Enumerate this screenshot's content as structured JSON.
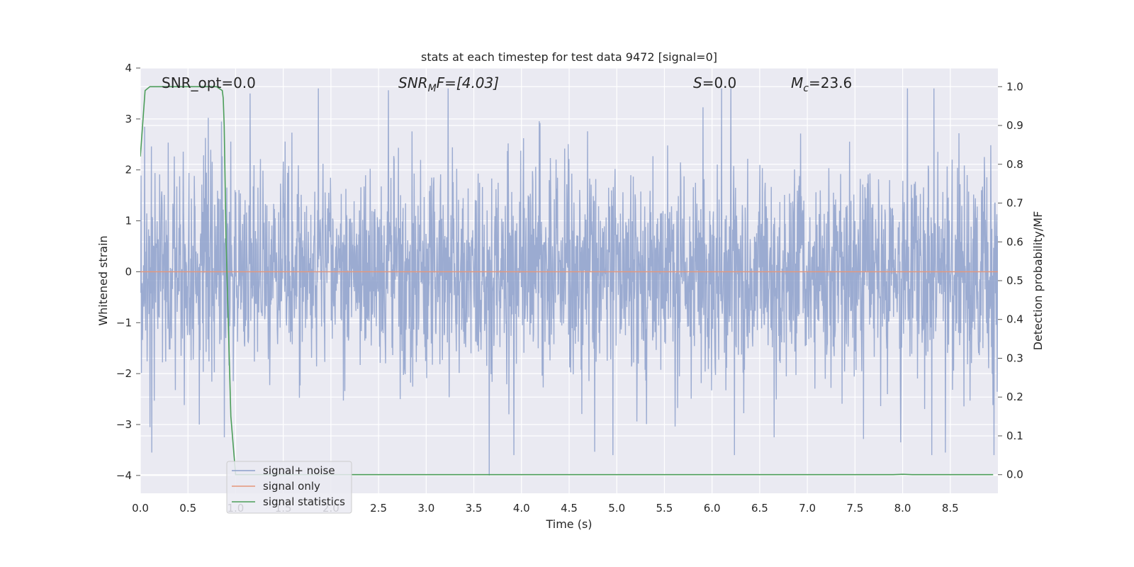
{
  "chart_data": {
    "type": "line",
    "title": "stats at each timestep for test data 9472 [signal=0]",
    "xlabel": "Time (s)",
    "ylabel": "Whitened strain",
    "y2label": "Detection probability/MF",
    "xlim": [
      0.0,
      9.0
    ],
    "ylim": [
      -4.35,
      4.0
    ],
    "y2lim": [
      -0.048,
      1.048
    ],
    "x_ticks": [
      0.0,
      0.5,
      1.0,
      1.5,
      2.0,
      2.5,
      3.0,
      3.5,
      4.0,
      4.5,
      5.0,
      5.5,
      6.0,
      6.5,
      7.0,
      7.5,
      8.0,
      8.5
    ],
    "x_tick_labels": [
      "0.0",
      "0.5",
      "1.0",
      "1.5",
      "2.0",
      "2.5",
      "3.0",
      "3.5",
      "4.0",
      "4.5",
      "5.0",
      "5.5",
      "6.0",
      "6.5",
      "7.0",
      "7.5",
      "8.0",
      "8.5"
    ],
    "y_ticks": [
      4,
      3,
      2,
      1,
      0,
      -1,
      -2,
      -3,
      -4
    ],
    "y_tick_labels": [
      "4",
      "3",
      "2",
      "1",
      "0",
      "−1",
      "−2",
      "−3",
      "−4"
    ],
    "y2_ticks": [
      1.0,
      0.9,
      0.8,
      0.7,
      0.6,
      0.5,
      0.4,
      0.3,
      0.2,
      0.1,
      0.0
    ],
    "y2_tick_labels": [
      "1.0",
      "0.9",
      "0.8",
      "0.7",
      "0.6",
      "0.5",
      "0.4",
      "0.3",
      "0.2",
      "0.1",
      "0.0"
    ],
    "grid": true,
    "legend_position": "lower-left",
    "annotations": {
      "snr_opt": "SNR_opt=0.0",
      "snr_mf_base": "SNR",
      "snr_mf_sub": "M",
      "snr_mf_rest": "F=[4.03]",
      "s_italic": "S",
      "s_rest": "=0.0",
      "mc_base": "M",
      "mc_sub": "c",
      "mc_rest": "=23.6"
    },
    "series": [
      {
        "name": "signal+ noise",
        "color": "#8da0cb",
        "kind": "noise",
        "x_range": [
          0.0,
          9.0
        ],
        "envelope": [
          -3.6,
          3.6
        ],
        "notable_peaks": [
          {
            "x": 0.1,
            "y": -3.05
          },
          {
            "x": 0.12,
            "y": -3.55
          },
          {
            "x": 0.62,
            "y": -3.0
          },
          {
            "x": 0.85,
            "y": 2.95
          },
          {
            "x": 0.88,
            "y": -3.25
          },
          {
            "x": 1.15,
            "y": 3.5
          },
          {
            "x": 1.87,
            "y": 3.6
          },
          {
            "x": 3.66,
            "y": -4.0
          },
          {
            "x": 3.92,
            "y": -3.6
          },
          {
            "x": 4.96,
            "y": -3.6
          },
          {
            "x": 6.1,
            "y": 3.6
          },
          {
            "x": 6.65,
            "y": -3.25
          },
          {
            "x": 7.98,
            "y": -3.35
          },
          {
            "x": 8.33,
            "y": 3.6
          },
          {
            "x": 8.45,
            "y": -3.55
          },
          {
            "x": 8.96,
            "y": -3.6
          }
        ]
      },
      {
        "name": "signal only",
        "color": "#e5967a",
        "x": [
          0.0,
          9.0
        ],
        "y": [
          0.0,
          0.0
        ]
      },
      {
        "name": "signal statistics",
        "color": "#4c9e5a",
        "axis": "right",
        "x": [
          0.0,
          0.05,
          0.1,
          0.2,
          0.5,
          0.8,
          0.86,
          0.87,
          0.88,
          0.9,
          0.95,
          1.0,
          1.5,
          3.0,
          6.0,
          7.9,
          8.0,
          8.1,
          8.95
        ],
        "y": [
          0.82,
          0.99,
          1.0,
          1.0,
          1.0,
          1.0,
          0.99,
          0.97,
          0.9,
          0.6,
          0.15,
          0.0,
          0.0,
          0.0,
          0.0,
          0.0,
          0.001,
          0.0,
          0.0
        ]
      }
    ]
  }
}
